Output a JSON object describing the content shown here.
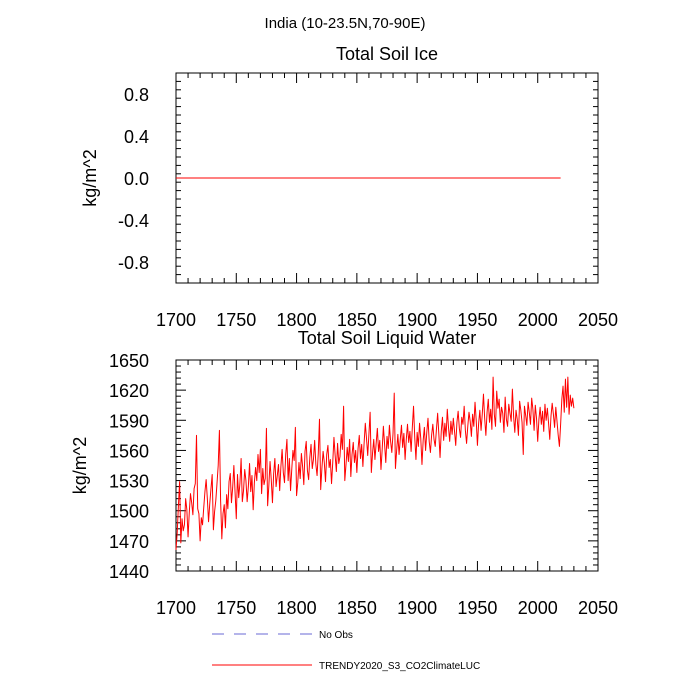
{
  "figure": {
    "title": "India (10-23.5N,70-90E)"
  },
  "chart_data": [
    {
      "type": "line",
      "title": "Total Soil Ice",
      "xlabel": "",
      "ylabel": "kg/m^2",
      "xlim": [
        1700,
        2050
      ],
      "ylim": [
        -1.0,
        1.0
      ],
      "xticks": [
        1700,
        1750,
        1800,
        1850,
        1900,
        1950,
        2000,
        2050
      ],
      "yticks": [
        -0.8,
        -0.4,
        0.0,
        0.4,
        0.8
      ],
      "ytick_labels": [
        "-0.8",
        "-0.4",
        "0.0",
        "0.4",
        "0.8"
      ],
      "series": [
        {
          "name": "TRENDY2020_S3_CO2ClimateLUC",
          "color": "#ff0000",
          "x": [
            1700,
            2019
          ],
          "values": [
            0.0,
            0.0
          ]
        }
      ]
    },
    {
      "type": "line",
      "title": "Total Soil Liquid Water",
      "xlabel": "",
      "ylabel": "kg/m^2",
      "xlim": [
        1700,
        2050
      ],
      "ylim": [
        1440,
        1650
      ],
      "xticks": [
        1700,
        1750,
        1800,
        1850,
        1900,
        1950,
        2000,
        2050
      ],
      "yticks": [
        1440,
        1470,
        1500,
        1530,
        1560,
        1590,
        1620,
        1650
      ],
      "ytick_labels": [
        "1440",
        "1470",
        "1500",
        "1530",
        "1560",
        "1590",
        "1620",
        "1650"
      ],
      "series": [
        {
          "name": "TRENDY2020_S3_CO2ClimateLUC",
          "color": "#ff0000",
          "x_start": 1700,
          "x_step": 1,
          "values": [
            1461,
            1478,
            1505,
            1529,
            1468,
            1492,
            1480,
            1486,
            1512,
            1501,
            1474,
            1498,
            1517,
            1508,
            1496,
            1522,
            1527,
            1575,
            1502,
            1497,
            1470,
            1493,
            1486,
            1503,
            1519,
            1531,
            1512,
            1489,
            1507,
            1522,
            1536,
            1481,
            1499,
            1510,
            1527,
            1545,
            1580,
            1510,
            1472,
            1497,
            1506,
            1483,
            1516,
            1502,
            1529,
            1537,
            1508,
            1523,
            1545,
            1518,
            1492,
            1536,
            1513,
            1527,
            1552,
            1509,
            1520,
            1541,
            1530,
            1509,
            1524,
            1547,
            1519,
            1535,
            1501,
            1528,
            1543,
            1530,
            1556,
            1538,
            1561,
            1517,
            1542,
            1526,
            1532,
            1582,
            1505,
            1525,
            1549,
            1531,
            1508,
            1537,
            1552,
            1524,
            1535,
            1546,
            1520,
            1544,
            1561,
            1538,
            1528,
            1556,
            1571,
            1530,
            1552,
            1520,
            1541,
            1560,
            1550,
            1583,
            1515,
            1528,
            1548,
            1532,
            1557,
            1544,
            1526,
            1559,
            1569,
            1540,
            1531,
            1553,
            1566,
            1542,
            1551,
            1570,
            1546,
            1535,
            1557,
            1591,
            1521,
            1542,
            1559,
            1548,
            1529,
            1556,
            1565,
            1543,
            1551,
            1527,
            1548,
            1573,
            1555,
            1539,
            1567,
            1547,
            1554,
            1576,
            1561,
            1604,
            1530,
            1546,
            1563,
            1549,
            1571,
            1534,
            1556,
            1568,
            1548,
            1560,
            1538,
            1562,
            1575,
            1552,
            1566,
            1544,
            1567,
            1587,
            1572,
            1555,
            1576,
            1598,
            1538,
            1557,
            1571,
            1551,
            1567,
            1582,
            1559,
            1570,
            1541,
            1561,
            1584,
            1566,
            1548,
            1574,
            1562,
            1585,
            1569,
            1558,
            1577,
            1617,
            1542,
            1560,
            1576,
            1556,
            1571,
            1585,
            1563,
            1577,
            1551,
            1571,
            1586,
            1568,
            1579,
            1559,
            1583,
            1604,
            1573,
            1551,
            1578,
            1564,
            1587,
            1572,
            1546,
            1570,
            1583,
            1560,
            1578,
            1592,
            1569,
            1558,
            1575,
            1586,
            1571,
            1564,
            1581,
            1597,
            1576,
            1553,
            1579,
            1593,
            1570,
            1587,
            1574,
            1601,
            1583,
            1569,
            1589,
            1576,
            1592,
            1579,
            1565,
            1588,
            1599,
            1582,
            1573,
            1593,
            1586,
            1604,
            1580,
            1567,
            1584,
            1598,
            1589,
            1574,
            1596,
            1584,
            1608,
            1590,
            1565,
            1587,
            1600,
            1580,
            1596,
            1616,
            1592,
            1575,
            1598,
            1611,
            1588,
            1601,
            1581,
            1633,
            1596,
            1584,
            1619,
            1602,
            1611,
            1588,
            1603,
            1597,
            1578,
            1613,
            1591,
            1584,
            1606,
            1597,
            1589,
            1621,
            1594,
            1578,
            1600,
            1591,
            1575,
            1609,
            1600,
            1588,
            1556,
            1604,
            1595,
            1585,
            1608,
            1598,
            1586,
            1612,
            1601,
            1580,
            1605,
            1592,
            1569,
            1591,
            1603,
            1586,
            1599,
            1579,
            1606,
            1590,
            1602,
            1587,
            1571,
            1594,
            1607,
            1596,
            1583,
            1603,
            1589,
            1575,
            1564,
            1586,
            1611,
            1624,
            1598,
            1631,
            1603,
            1633,
            1596,
            1615,
            1604,
            1612,
            1602
          ]
        }
      ]
    }
  ],
  "legend": {
    "items": [
      {
        "label": "No Obs",
        "color": "#6a6ad6",
        "style": "dashed"
      },
      {
        "label": "TRENDY2020_S3_CO2ClimateLUC",
        "color": "#ff0000",
        "style": "solid"
      }
    ]
  }
}
